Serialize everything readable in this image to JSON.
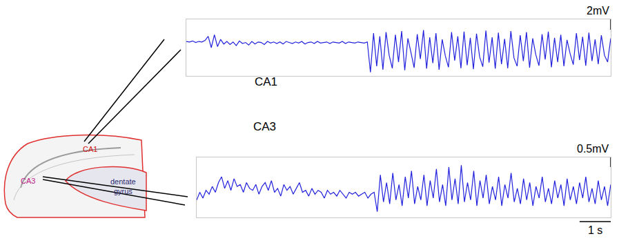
{
  "chart_data": [
    {
      "type": "line",
      "title": "CA1",
      "color": "#2020dd",
      "tick_labels": false,
      "xlim": [
        0,
        13.6
      ],
      "ylim": [
        -6.5,
        4.5
      ],
      "scale_bar": {
        "value": 2,
        "label": "2mV"
      },
      "x": [
        0,
        0.1,
        0.2,
        0.3,
        0.4,
        0.5,
        0.6,
        0.7,
        0.8,
        0.9,
        1,
        1.1,
        1.2,
        1.3,
        1.4,
        1.5,
        1.6,
        1.7,
        1.8,
        1.9,
        2,
        2.1,
        2.2,
        2.3,
        2.4,
        2.5,
        2.6,
        2.7,
        2.8,
        2.9,
        3,
        3.1,
        3.2,
        3.3,
        3.4,
        3.5,
        3.6,
        3.7,
        3.8,
        3.9,
        4,
        4.1,
        4.2,
        4.3,
        4.4,
        4.5,
        4.6,
        4.7,
        4.8,
        4.9,
        5,
        5.1,
        5.2,
        5.3,
        5.4,
        5.5,
        5.6,
        5.7,
        5.8,
        5.9,
        6,
        6.1,
        6.2,
        6.3,
        6.4,
        6.5,
        6.6,
        6.7,
        6.8,
        6.9,
        7,
        7.1,
        7.2,
        7.3,
        7.4,
        7.5,
        7.6,
        7.7,
        7.8,
        7.9,
        8,
        8.1,
        8.2,
        8.3,
        8.4,
        8.5,
        8.6,
        8.7,
        8.8,
        8.9,
        9,
        9.1,
        9.2,
        9.3,
        9.4,
        9.5,
        9.6,
        9.7,
        9.8,
        9.9,
        10,
        10.1,
        10.2,
        10.3,
        10.4,
        10.5,
        10.6,
        10.7,
        10.8,
        10.9,
        11,
        11.1,
        11.2,
        11.3,
        11.4,
        11.5,
        11.6,
        11.7,
        11.8,
        11.9,
        12,
        12.1,
        12.2,
        12.3,
        12.4,
        12.5,
        12.6,
        12.7,
        12.8,
        12.9,
        13,
        13.1,
        13.2,
        13.3,
        13.4,
        13.5,
        13.6
      ],
      "values": [
        0.2,
        0.1,
        0.3,
        0,
        0.2,
        0.1,
        0.4,
        1.2,
        -1.0,
        1.5,
        -0.8,
        0.6,
        -0.3,
        0.2,
        -0.4,
        0.1,
        -0.6,
        0.3,
        -0.2,
        0,
        -0.5,
        0.2,
        -0.3,
        0.1,
        0,
        -0.4,
        0.2,
        -0.1,
        0.1,
        -0.2,
        0.1,
        -0.3,
        0.2,
        0,
        -0.2,
        0.1,
        -0.1,
        0.2,
        -0.3,
        0,
        0.1,
        -0.2,
        0.2,
        -0.1,
        0,
        0.1,
        -0.2,
        0.1,
        0,
        -0.1,
        0.2,
        -0.2,
        0.1,
        0,
        -0.1,
        0.1,
        0,
        -0.1,
        0.1,
        -5.8,
        1.8,
        -4.6,
        1.2,
        -5.3,
        2.0,
        -2.5,
        -5.0,
        1.5,
        -3.8,
        2.2,
        -5.4,
        0.8,
        -2.0,
        -4.9,
        1.6,
        -3.2,
        2.4,
        -5.1,
        1.0,
        -4.0,
        1.8,
        -5.3,
        0.6,
        -2.6,
        -4.8,
        2.0,
        -3.5,
        1.2,
        -5.0,
        2.1,
        -4.4,
        0.9,
        -5.2,
        1.7,
        -2.8,
        -4.7,
        2.3,
        -3.9,
        1.0,
        -5.1,
        1.9,
        -4.2,
        0.7,
        -5.0,
        2.2,
        -3.0,
        -4.6,
        1.4,
        -3.6,
        2.0,
        -4.9,
        0.8,
        -2.4,
        -4.5,
        1.6,
        -3.3,
        2.1,
        -4.8,
        0.9,
        -3.8,
        1.5,
        -4.6,
        0.5,
        -2.2,
        -4.3,
        1.8,
        -3.4,
        1.1,
        -4.5,
        1.9,
        -3.6,
        0.6,
        -4.2,
        1.4,
        -2.5,
        -3.8,
        0.8
      ]
    },
    {
      "type": "line",
      "title": "CA3",
      "color": "#2020dd",
      "tick_labels": false,
      "xlim": [
        0,
        13.3
      ],
      "ylim": [
        -1.2,
        1.9
      ],
      "scale_bar": {
        "value": 0.5,
        "label": "0.5mV"
      },
      "time_scale_bar": {
        "value": 1,
        "label": "1 s"
      },
      "x": [
        0,
        0.1,
        0.2,
        0.3,
        0.4,
        0.5,
        0.6,
        0.7,
        0.8,
        0.9,
        1,
        1.1,
        1.2,
        1.3,
        1.4,
        1.5,
        1.6,
        1.7,
        1.8,
        1.9,
        2,
        2.1,
        2.2,
        2.3,
        2.4,
        2.5,
        2.6,
        2.7,
        2.8,
        2.9,
        3,
        3.1,
        3.2,
        3.3,
        3.4,
        3.5,
        3.6,
        3.7,
        3.8,
        3.9,
        4,
        4.1,
        4.2,
        4.3,
        4.4,
        4.5,
        4.6,
        4.7,
        4.8,
        4.9,
        5,
        5.1,
        5.2,
        5.3,
        5.4,
        5.5,
        5.6,
        5.7,
        5.8,
        5.9,
        6,
        6.1,
        6.2,
        6.3,
        6.4,
        6.5,
        6.6,
        6.7,
        6.8,
        6.9,
        7,
        7.1,
        7.2,
        7.3,
        7.4,
        7.5,
        7.6,
        7.7,
        7.8,
        7.9,
        8,
        8.1,
        8.2,
        8.3,
        8.4,
        8.5,
        8.6,
        8.7,
        8.8,
        8.9,
        9,
        9.1,
        9.2,
        9.3,
        9.4,
        9.5,
        9.6,
        9.7,
        9.8,
        9.9,
        10,
        10.1,
        10.2,
        10.3,
        10.4,
        10.5,
        10.6,
        10.7,
        10.8,
        10.9,
        11,
        11.1,
        11.2,
        11.3,
        11.4,
        11.5,
        11.6,
        11.7,
        11.8,
        11.9,
        12,
        12.1,
        12.2,
        12.3,
        12.4,
        12.5,
        12.6,
        12.7,
        12.8,
        12.9,
        13,
        13.1,
        13.2,
        13.3
      ],
      "values": [
        -0.3,
        0.1,
        -0.2,
        0.2,
        0,
        0.4,
        0.1,
        0.6,
        0.9,
        0.3,
        0.7,
        0.2,
        0.8,
        0.4,
        0.5,
        0.1,
        0.6,
        0.3,
        0.2,
        0.5,
        0,
        0.4,
        0.6,
        0.2,
        0.7,
        0.1,
        0.3,
        -0.1,
        0.5,
        0.2,
        0.4,
        0,
        0.3,
        0.6,
        0.1,
        0.2,
        -0.1,
        0.3,
        0,
        0.2,
        0.1,
        -0.2,
        0.2,
        0,
        0.1,
        -0.1,
        0.2,
        0,
        -0.2,
        0.1,
        0,
        0.1,
        -0.1,
        0,
        0.1,
        -0.2,
        0,
        0.1,
        -0.9,
        1.0,
        -0.4,
        0.6,
        -0.5,
        1.1,
        -0.3,
        0.5,
        -0.6,
        0.9,
        -0.2,
        1.2,
        -0.5,
        0.4,
        -0.3,
        1.0,
        -0.6,
        0.7,
        -0.2,
        1.3,
        -0.4,
        0.5,
        -0.6,
        1.4,
        -0.3,
        0.8,
        -0.5,
        1.5,
        -0.4,
        0.6,
        -0.3,
        1.2,
        -0.6,
        0.7,
        -0.2,
        1.0,
        -0.5,
        0.4,
        -0.3,
        0.9,
        -0.6,
        0.5,
        -0.2,
        1.1,
        -0.4,
        0.3,
        -0.5,
        0.8,
        -0.3,
        0.6,
        -0.6,
        0.4,
        -0.2,
        0.9,
        -0.4,
        0.3,
        -0.5,
        0.7,
        -0.2,
        0.5,
        -0.6,
        0.8,
        -0.3,
        0.4,
        -0.5,
        0.6,
        -0.2,
        0.9,
        -0.4,
        0.3,
        -0.5,
        0.7,
        -0.3,
        0.4,
        -0.6,
        0.5
      ]
    }
  ],
  "schematic": {
    "labels": [
      {
        "text": "CA1",
        "color": "#d01010"
      },
      {
        "text": "CA3",
        "color": "#c0208a"
      },
      {
        "text": "dentate gyrus",
        "color": "#2a2a70"
      }
    ]
  }
}
